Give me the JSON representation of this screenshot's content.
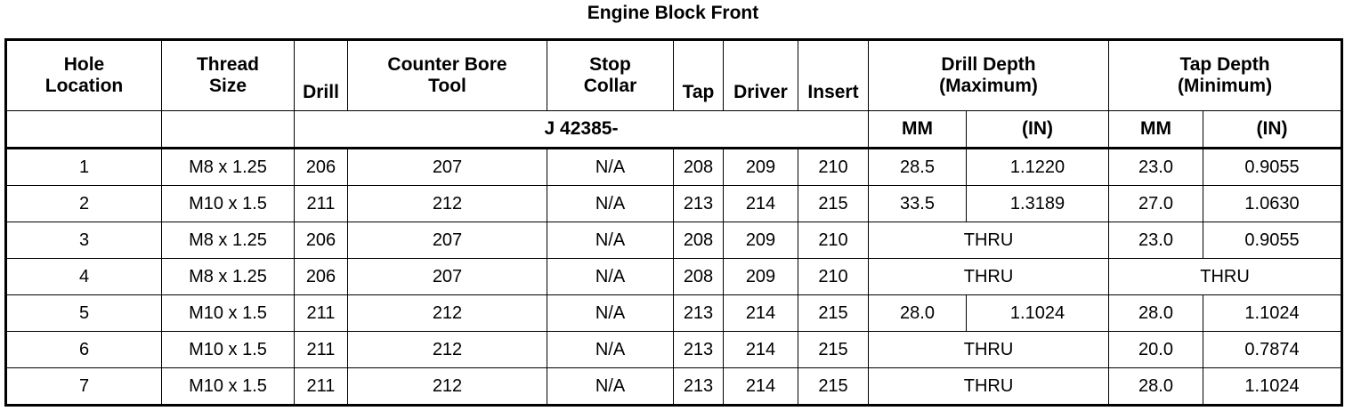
{
  "title": "Engine Block Front",
  "headers": {
    "hole_location": [
      "Hole",
      "Location"
    ],
    "thread_size": [
      "Thread",
      "Size"
    ],
    "drill": "Drill",
    "counter_bore": [
      "Counter Bore",
      "Tool"
    ],
    "stop_collar": [
      "Stop",
      "Collar"
    ],
    "tap": "Tap",
    "driver": "Driver",
    "insert": "Insert",
    "drill_depth": [
      "Drill Depth",
      "(Maximum)"
    ],
    "tap_depth": [
      "Tap Depth",
      "(Minimum)"
    ],
    "tool_prefix": "J 42385-",
    "mm": "MM",
    "in": "(IN)"
  },
  "rows": [
    {
      "hole": "1",
      "thread": "M8 x 1.25",
      "drill": "206",
      "cbore": "207",
      "collar": "N/A",
      "tap": "208",
      "driver": "209",
      "insert": "210",
      "dd_mm": "28.5",
      "dd_in": "1.1220",
      "td_mm": "23.0",
      "td_in": "0.9055"
    },
    {
      "hole": "2",
      "thread": "M10 x 1.5",
      "drill": "211",
      "cbore": "212",
      "collar": "N/A",
      "tap": "213",
      "driver": "214",
      "insert": "215",
      "dd_mm": "33.5",
      "dd_in": "1.3189",
      "td_mm": "27.0",
      "td_in": "1.0630"
    },
    {
      "hole": "3",
      "thread": "M8 x 1.25",
      "drill": "206",
      "cbore": "207",
      "collar": "N/A",
      "tap": "208",
      "driver": "209",
      "insert": "210",
      "dd": "THRU",
      "td_mm": "23.0",
      "td_in": "0.9055"
    },
    {
      "hole": "4",
      "thread": "M8 x 1.25",
      "drill": "206",
      "cbore": "207",
      "collar": "N/A",
      "tap": "208",
      "driver": "209",
      "insert": "210",
      "dd": "THRU",
      "td": "THRU"
    },
    {
      "hole": "5",
      "thread": "M10 x 1.5",
      "drill": "211",
      "cbore": "212",
      "collar": "N/A",
      "tap": "213",
      "driver": "214",
      "insert": "215",
      "dd_mm": "28.0",
      "dd_in": "1.1024",
      "td_mm": "28.0",
      "td_in": "1.1024"
    },
    {
      "hole": "6",
      "thread": "M10 x 1.5",
      "drill": "211",
      "cbore": "212",
      "collar": "N/A",
      "tap": "213",
      "driver": "214",
      "insert": "215",
      "dd": "THRU",
      "td_mm": "20.0",
      "td_in": "0.7874"
    },
    {
      "hole": "7",
      "thread": "M10 x 1.5",
      "drill": "211",
      "cbore": "212",
      "collar": "N/A",
      "tap": "213",
      "driver": "214",
      "insert": "215",
      "dd": "THRU",
      "td_mm": "28.0",
      "td_in": "1.1024"
    }
  ]
}
